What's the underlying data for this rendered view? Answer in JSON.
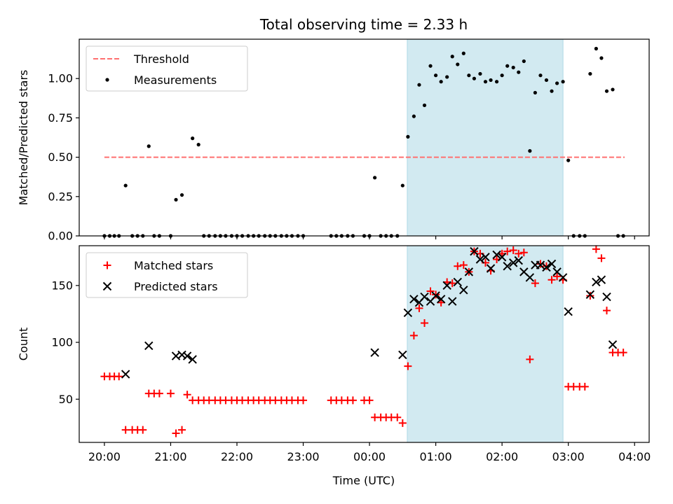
{
  "chart_data": {
    "title": "Total observing time = 2.33 h",
    "xlabel": "Time (UTC)",
    "shaded_span": {
      "x0": 0.57,
      "x1": 2.92,
      "color": "#add8e6"
    },
    "x_ticks": [
      {
        "value": -4,
        "label": "20:00"
      },
      {
        "value": -3,
        "label": "21:00"
      },
      {
        "value": -2,
        "label": "22:00"
      },
      {
        "value": -1,
        "label": "23:00"
      },
      {
        "value": 0,
        "label": "00:00"
      },
      {
        "value": 1,
        "label": "01:00"
      },
      {
        "value": 2,
        "label": "02:00"
      },
      {
        "value": 3,
        "label": "03:00"
      },
      {
        "value": 4,
        "label": "04:00"
      }
    ],
    "xlim": [
      -4.38,
      4.22
    ],
    "panels": [
      {
        "type": "scatter",
        "ylabel": "Matched/Predicted stars",
        "ylim": [
          0,
          1.25
        ],
        "y_ticks": [
          "0.00",
          "0.25",
          "0.50",
          "0.75",
          "1.00"
        ],
        "y_tick_values": [
          0,
          0.25,
          0.5,
          0.75,
          1.0
        ],
        "legend_position": "upper-left",
        "series": [
          {
            "name": "Threshold",
            "kind": "dashed-line",
            "color": "#ff7070",
            "x": [
              -4.0,
              3.85
            ],
            "y": [
              0.5,
              0.5
            ]
          },
          {
            "name": "Measurements",
            "kind": "dot",
            "color": "#000000",
            "points": [
              [
                -4.0,
                0
              ],
              [
                -3.92,
                0
              ],
              [
                -3.85,
                0
              ],
              [
                -3.78,
                0
              ],
              [
                -3.68,
                0.32
              ],
              [
                -3.58,
                0
              ],
              [
                -3.5,
                0
              ],
              [
                -3.42,
                0
              ],
              [
                -3.33,
                0.57
              ],
              [
                -3.25,
                0
              ],
              [
                -3.17,
                0
              ],
              [
                -3.0,
                0
              ],
              [
                -2.92,
                0.23
              ],
              [
                -2.83,
                0.26
              ],
              [
                -2.67,
                0.62
              ],
              [
                -2.58,
                0.58
              ],
              [
                -2.5,
                0
              ],
              [
                -2.42,
                0
              ],
              [
                -2.33,
                0
              ],
              [
                -2.25,
                0
              ],
              [
                -2.17,
                0
              ],
              [
                -2.08,
                0
              ],
              [
                -2.0,
                0
              ],
              [
                -1.92,
                0
              ],
              [
                -1.83,
                0
              ],
              [
                -1.75,
                0
              ],
              [
                -1.67,
                0
              ],
              [
                -1.58,
                0
              ],
              [
                -1.5,
                0
              ],
              [
                -1.42,
                0
              ],
              [
                -1.33,
                0
              ],
              [
                -1.25,
                0
              ],
              [
                -1.17,
                0
              ],
              [
                -1.08,
                0
              ],
              [
                -1.0,
                0
              ],
              [
                -0.58,
                0
              ],
              [
                -0.5,
                0
              ],
              [
                -0.42,
                0
              ],
              [
                -0.33,
                0
              ],
              [
                -0.25,
                0
              ],
              [
                -0.08,
                0
              ],
              [
                0.0,
                0
              ],
              [
                0.08,
                0.37
              ],
              [
                0.17,
                0
              ],
              [
                0.25,
                0
              ],
              [
                0.33,
                0
              ],
              [
                0.42,
                0
              ],
              [
                0.5,
                0.32
              ],
              [
                0.58,
                0.63
              ],
              [
                0.67,
                0.76
              ],
              [
                0.75,
                0.96
              ],
              [
                0.83,
                0.83
              ],
              [
                0.92,
                1.08
              ],
              [
                1.0,
                1.02
              ],
              [
                1.08,
                0.98
              ],
              [
                1.17,
                1.01
              ],
              [
                1.25,
                1.14
              ],
              [
                1.33,
                1.09
              ],
              [
                1.42,
                1.16
              ],
              [
                1.5,
                1.02
              ],
              [
                1.58,
                1.0
              ],
              [
                1.67,
                1.03
              ],
              [
                1.75,
                0.98
              ],
              [
                1.83,
                0.99
              ],
              [
                1.92,
                0.98
              ],
              [
                2.0,
                1.02
              ],
              [
                2.08,
                1.08
              ],
              [
                2.17,
                1.07
              ],
              [
                2.25,
                1.04
              ],
              [
                2.33,
                1.11
              ],
              [
                2.42,
                0.54
              ],
              [
                2.5,
                0.91
              ],
              [
                2.58,
                1.02
              ],
              [
                2.67,
                0.99
              ],
              [
                2.75,
                0.92
              ],
              [
                2.83,
                0.97
              ],
              [
                2.92,
                0.98
              ],
              [
                3.0,
                0.48
              ],
              [
                3.08,
                0
              ],
              [
                3.17,
                0
              ],
              [
                3.25,
                0
              ],
              [
                3.33,
                1.03
              ],
              [
                3.42,
                1.19
              ],
              [
                3.5,
                1.13
              ],
              [
                3.58,
                0.92
              ],
              [
                3.67,
                0.93
              ],
              [
                3.75,
                0
              ],
              [
                3.83,
                0
              ]
            ]
          }
        ]
      },
      {
        "type": "scatter",
        "ylabel": "Count",
        "ylim": [
          12,
          185
        ],
        "y_ticks": [
          "50",
          "100",
          "150"
        ],
        "y_tick_values": [
          50,
          100,
          150
        ],
        "legend_position": "upper-left",
        "series": [
          {
            "name": "Matched stars",
            "kind": "plus",
            "color": "#ff0000",
            "points": [
              [
                -4.0,
                70
              ],
              [
                -3.92,
                70
              ],
              [
                -3.85,
                70
              ],
              [
                -3.78,
                70
              ],
              [
                -3.68,
                23
              ],
              [
                -3.58,
                23
              ],
              [
                -3.5,
                23
              ],
              [
                -3.42,
                23
              ],
              [
                -3.33,
                55
              ],
              [
                -3.25,
                55
              ],
              [
                -3.17,
                55
              ],
              [
                -3.0,
                55
              ],
              [
                -2.92,
                20
              ],
              [
                -2.83,
                23
              ],
              [
                -2.75,
                54
              ],
              [
                -2.67,
                49
              ],
              [
                -2.58,
                49
              ],
              [
                -2.5,
                49
              ],
              [
                -2.42,
                49
              ],
              [
                -2.33,
                49
              ],
              [
                -2.25,
                49
              ],
              [
                -2.17,
                49
              ],
              [
                -2.08,
                49
              ],
              [
                -2.0,
                49
              ],
              [
                -1.92,
                49
              ],
              [
                -1.83,
                49
              ],
              [
                -1.75,
                49
              ],
              [
                -1.67,
                49
              ],
              [
                -1.58,
                49
              ],
              [
                -1.5,
                49
              ],
              [
                -1.42,
                49
              ],
              [
                -1.33,
                49
              ],
              [
                -1.25,
                49
              ],
              [
                -1.17,
                49
              ],
              [
                -1.08,
                49
              ],
              [
                -1.0,
                49
              ],
              [
                -0.58,
                49
              ],
              [
                -0.5,
                49
              ],
              [
                -0.42,
                49
              ],
              [
                -0.33,
                49
              ],
              [
                -0.25,
                49
              ],
              [
                -0.08,
                49
              ],
              [
                0.0,
                49
              ],
              [
                0.08,
                34
              ],
              [
                0.17,
                34
              ],
              [
                0.25,
                34
              ],
              [
                0.33,
                34
              ],
              [
                0.42,
                34
              ],
              [
                0.5,
                29
              ],
              [
                0.58,
                79
              ],
              [
                0.67,
                106
              ],
              [
                0.75,
                130
              ],
              [
                0.83,
                117
              ],
              [
                0.92,
                145
              ],
              [
                1.0,
                142
              ],
              [
                1.08,
                135
              ],
              [
                1.17,
                153
              ],
              [
                1.25,
                152
              ],
              [
                1.33,
                167
              ],
              [
                1.42,
                168
              ],
              [
                1.5,
                162
              ],
              [
                1.58,
                180
              ],
              [
                1.67,
                178
              ],
              [
                1.75,
                170
              ],
              [
                1.83,
                163
              ],
              [
                1.92,
                173
              ],
              [
                2.0,
                178
              ],
              [
                2.08,
                180
              ],
              [
                2.17,
                181
              ],
              [
                2.25,
                178
              ],
              [
                2.33,
                179
              ],
              [
                2.42,
                85
              ],
              [
                2.5,
                152
              ],
              [
                2.58,
                169
              ],
              [
                2.67,
                167
              ],
              [
                2.75,
                155
              ],
              [
                2.83,
                158
              ],
              [
                2.92,
                155
              ],
              [
                3.0,
                61
              ],
              [
                3.08,
                61
              ],
              [
                3.17,
                61
              ],
              [
                3.25,
                61
              ],
              [
                3.33,
                141
              ],
              [
                3.42,
                182
              ],
              [
                3.5,
                174
              ],
              [
                3.58,
                128
              ],
              [
                3.67,
                91
              ],
              [
                3.75,
                91
              ],
              [
                3.83,
                91
              ]
            ]
          },
          {
            "name": "Predicted stars",
            "kind": "cross",
            "color": "#000000",
            "points": [
              [
                -3.68,
                72
              ],
              [
                -3.33,
                97
              ],
              [
                -2.92,
                88
              ],
              [
                -2.83,
                89
              ],
              [
                -2.75,
                88
              ],
              [
                -2.67,
                85
              ],
              [
                0.08,
                91
              ],
              [
                0.5,
                89
              ],
              [
                0.58,
                126
              ],
              [
                0.67,
                138
              ],
              [
                0.75,
                135
              ],
              [
                0.83,
                140
              ],
              [
                0.92,
                136
              ],
              [
                1.0,
                141
              ],
              [
                1.08,
                138
              ],
              [
                1.17,
                150
              ],
              [
                1.25,
                136
              ],
              [
                1.33,
                153
              ],
              [
                1.42,
                146
              ],
              [
                1.5,
                162
              ],
              [
                1.58,
                180
              ],
              [
                1.67,
                173
              ],
              [
                1.75,
                175
              ],
              [
                1.83,
                165
              ],
              [
                1.92,
                177
              ],
              [
                2.0,
                175
              ],
              [
                2.08,
                167
              ],
              [
                2.17,
                170
              ],
              [
                2.25,
                172
              ],
              [
                2.33,
                162
              ],
              [
                2.42,
                157
              ],
              [
                2.5,
                168
              ],
              [
                2.58,
                168
              ],
              [
                2.67,
                166
              ],
              [
                2.75,
                169
              ],
              [
                2.83,
                162
              ],
              [
                2.92,
                157
              ],
              [
                3.0,
                127
              ],
              [
                3.33,
                142
              ],
              [
                3.42,
                153
              ],
              [
                3.5,
                155
              ],
              [
                3.58,
                140
              ],
              [
                3.67,
                98
              ]
            ]
          }
        ]
      }
    ]
  }
}
